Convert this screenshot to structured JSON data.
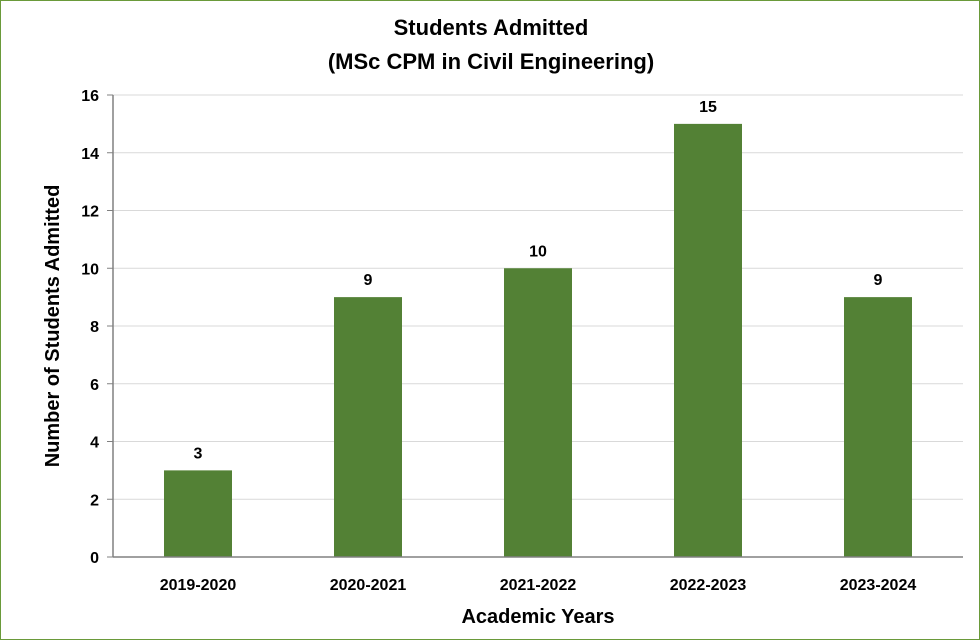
{
  "chart_data": {
    "type": "bar",
    "title": "Students Admitted",
    "subtitle": "(MSc CPM in Civil Engineering)",
    "xlabel": "Academic Years",
    "ylabel": "Number of Students Admitted",
    "categories": [
      "2019-2020",
      "2020-2021",
      "2021-2022",
      "2022-2023",
      "2023-2024"
    ],
    "values": [
      3,
      9,
      10,
      15,
      9
    ],
    "data_labels": [
      "3",
      "9",
      "10",
      "15",
      "9"
    ],
    "ylim": [
      0,
      16
    ],
    "yticks": [
      0,
      2,
      4,
      6,
      8,
      10,
      12,
      14,
      16
    ],
    "grid": true,
    "legend": "none",
    "bar_color": "#538135",
    "grid_color": "#d9d9d9",
    "axis_color": "#808080"
  }
}
